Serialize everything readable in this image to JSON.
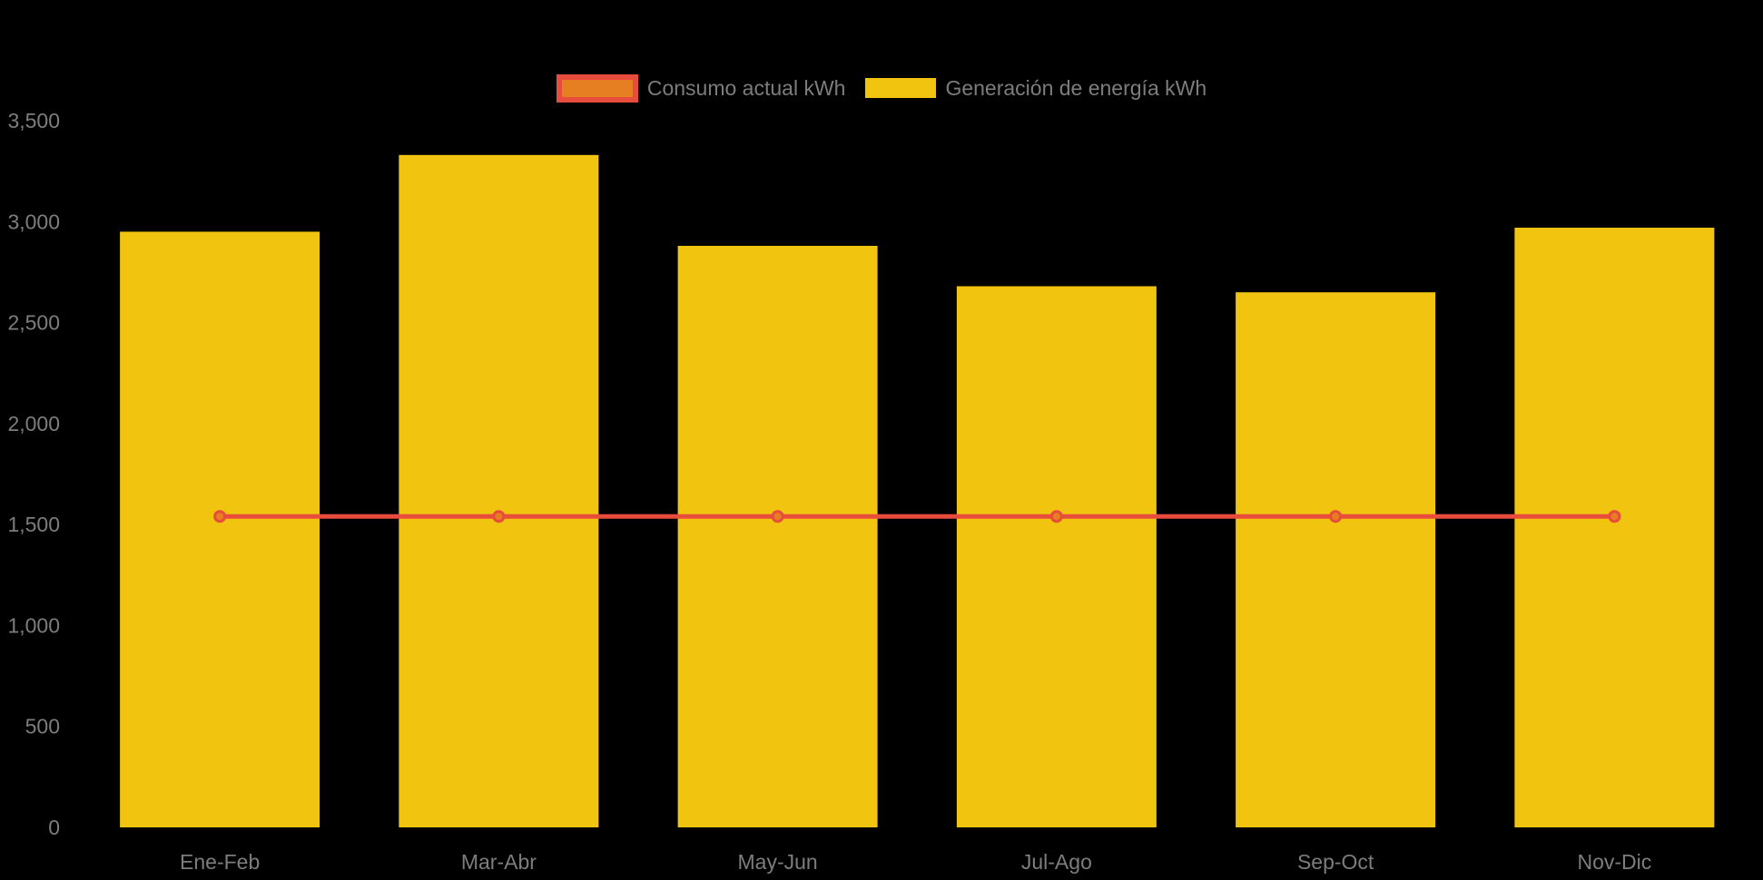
{
  "colors": {
    "background": "#000000",
    "bar_fill": "#f1c40f",
    "line_stroke": "#e74c3c",
    "marker_fill": "#e67e22",
    "marker_stroke": "#e74c3c",
    "axis_text": "#7d7d7d"
  },
  "legend": {
    "items": [
      {
        "id": "consumo",
        "label": "Consumo actual kWh",
        "swatch_fill": "#e67e22",
        "swatch_border": "#e74c3c",
        "swatch_kind": "line-series"
      },
      {
        "id": "generacion",
        "label": "Generación de energía kWh",
        "swatch_fill": "#f1c40f",
        "swatch_kind": "bar-series"
      }
    ]
  },
  "chart_data": {
    "type": "bar",
    "categories": [
      "Ene-Feb",
      "Mar-Abr",
      "May-Jun",
      "Jul-Ago",
      "Sep-Oct",
      "Nov-Dic"
    ],
    "series": [
      {
        "name": "Generación de energía kWh",
        "kind": "bar",
        "color": "#f1c40f",
        "values": [
          2950,
          3330,
          2880,
          2680,
          2650,
          2970
        ]
      },
      {
        "name": "Consumo actual kWh",
        "kind": "line",
        "color": "#e74c3c",
        "marker_fill": "#e67e22",
        "values": [
          1540,
          1540,
          1540,
          1540,
          1540,
          1540
        ]
      }
    ],
    "title": "",
    "xlabel": "",
    "ylabel": "",
    "ylim": [
      0,
      3500
    ],
    "yticks": [
      0,
      500,
      1000,
      1500,
      2000,
      2500,
      3000,
      3500
    ],
    "ytick_labels": [
      "0",
      "500",
      "1,000",
      "1,500",
      "2,000",
      "2,500",
      "3,000",
      "3,500"
    ],
    "grid": false,
    "legend_position": "top",
    "background": "#000000"
  }
}
